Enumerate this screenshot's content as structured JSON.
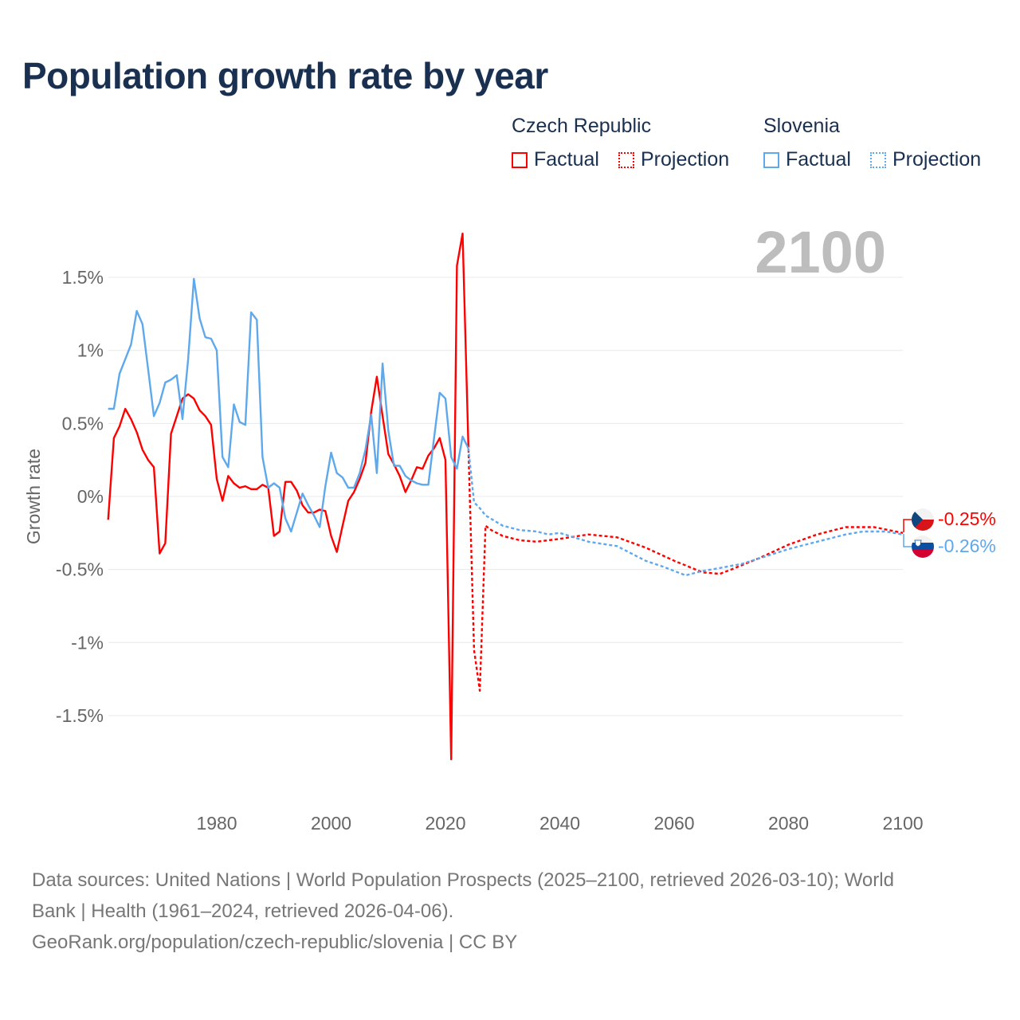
{
  "title": "Population growth rate by year",
  "legend": {
    "groups": [
      {
        "name": "Czech Republic",
        "color": "#ff0000",
        "factual": "Factual",
        "projection": "Projection"
      },
      {
        "name": "Slovenia",
        "color": "#5ea8ec",
        "factual": "Factual",
        "projection": "Projection"
      }
    ]
  },
  "year_label": "2100",
  "end_labels": {
    "czech": "-0.25%",
    "slovenia": "-0.26%"
  },
  "footer": {
    "line1": "Data sources: United Nations | World Population Prospects (2025–2100, retrieved 2026-03-10); World",
    "line2": "Bank | Health (1961–2024, retrieved 2026-04-06).",
    "line3": "GeoRank.org/population/czech-republic/slovenia | CC BY"
  },
  "chart_data": {
    "type": "line",
    "title": "Population growth rate by year",
    "xlabel": "",
    "ylabel": "Growth rate",
    "xlim": [
      1961,
      2100
    ],
    "ylim": [
      -2.0,
      1.9
    ],
    "xticks": [
      1980,
      2000,
      2020,
      2040,
      2060,
      2080,
      2100
    ],
    "xtick_labels": [
      "1980",
      "2000",
      "2020",
      "2040",
      "2060",
      "2080",
      "2100"
    ],
    "yticks": [
      1.5,
      1,
      0.5,
      0,
      -0.5,
      -1,
      -1.5
    ],
    "ytick_labels": [
      "1.5%",
      "1%",
      "0.5%",
      "0%",
      "-0.5%",
      "-1%",
      "-1.5%"
    ],
    "grid": true,
    "legend_position": "top-right",
    "series": [
      {
        "name": "Czech Republic - Factual",
        "color": "#ff0000",
        "style": "solid",
        "start_year": 1961,
        "values": [
          -0.16,
          0.4,
          0.48,
          0.6,
          0.53,
          0.44,
          0.32,
          0.25,
          0.2,
          -0.39,
          -0.32,
          0.43,
          0.55,
          0.67,
          0.7,
          0.67,
          0.59,
          0.55,
          0.49,
          0.12,
          -0.03,
          0.14,
          0.09,
          0.06,
          0.07,
          0.05,
          0.05,
          0.08,
          0.06,
          -0.27,
          -0.24,
          0.1,
          0.1,
          0.04,
          -0.06,
          -0.11,
          -0.11,
          -0.09,
          -0.1,
          -0.27,
          -0.38,
          -0.2,
          -0.03,
          0.03,
          0.12,
          0.23,
          0.58,
          0.82,
          0.55,
          0.29,
          0.22,
          0.14,
          0.03,
          0.11,
          0.2,
          0.19,
          0.28,
          0.33,
          0.4,
          0.25,
          -1.8,
          1.58,
          1.8,
          0.36
        ]
      },
      {
        "name": "Czech Republic - Projection",
        "color": "#ff0000",
        "style": "dotted",
        "points": [
          [
            2024,
            0.36
          ],
          [
            2025,
            -1.05
          ],
          [
            2026,
            -1.33
          ],
          [
            2027,
            -0.2
          ],
          [
            2028,
            -0.23
          ],
          [
            2030,
            -0.27
          ],
          [
            2033,
            -0.3
          ],
          [
            2036,
            -0.31
          ],
          [
            2040,
            -0.29
          ],
          [
            2045,
            -0.26
          ],
          [
            2050,
            -0.28
          ],
          [
            2055,
            -0.35
          ],
          [
            2060,
            -0.44
          ],
          [
            2065,
            -0.52
          ],
          [
            2068,
            -0.53
          ],
          [
            2070,
            -0.5
          ],
          [
            2075,
            -0.42
          ],
          [
            2080,
            -0.33
          ],
          [
            2085,
            -0.26
          ],
          [
            2090,
            -0.21
          ],
          [
            2095,
            -0.21
          ],
          [
            2100,
            -0.25
          ]
        ]
      },
      {
        "name": "Slovenia - Factual",
        "color": "#5ea8ec",
        "style": "solid",
        "start_year": 1961,
        "values": [
          0.6,
          0.6,
          0.84,
          0.94,
          1.04,
          1.27,
          1.18,
          0.87,
          0.55,
          0.64,
          0.78,
          0.8,
          0.83,
          0.53,
          0.94,
          1.49,
          1.22,
          1.09,
          1.08,
          1.0,
          0.27,
          0.2,
          0.63,
          0.51,
          0.49,
          1.26,
          1.21,
          0.27,
          0.06,
          0.09,
          0.06,
          -0.15,
          -0.24,
          -0.11,
          0.02,
          -0.06,
          -0.13,
          -0.21,
          0.07,
          0.3,
          0.16,
          0.13,
          0.06,
          0.06,
          0.16,
          0.32,
          0.56,
          0.16,
          0.91,
          0.45,
          0.21,
          0.21,
          0.14,
          0.11,
          0.09,
          0.08,
          0.08,
          0.4,
          0.71,
          0.67,
          0.27,
          0.19,
          0.41,
          0.33
        ]
      },
      {
        "name": "Slovenia - Projection",
        "color": "#5ea8ec",
        "style": "dotted",
        "points": [
          [
            2024,
            0.33
          ],
          [
            2025,
            -0.04
          ],
          [
            2026,
            -0.08
          ],
          [
            2027,
            -0.13
          ],
          [
            2030,
            -0.2
          ],
          [
            2033,
            -0.23
          ],
          [
            2036,
            -0.24
          ],
          [
            2038,
            -0.26
          ],
          [
            2040,
            -0.25
          ],
          [
            2045,
            -0.31
          ],
          [
            2050,
            -0.34
          ],
          [
            2055,
            -0.44
          ],
          [
            2058,
            -0.48
          ],
          [
            2062,
            -0.54
          ],
          [
            2065,
            -0.51
          ],
          [
            2068,
            -0.49
          ],
          [
            2072,
            -0.46
          ],
          [
            2076,
            -0.41
          ],
          [
            2080,
            -0.36
          ],
          [
            2085,
            -0.31
          ],
          [
            2090,
            -0.26
          ],
          [
            2093,
            -0.24
          ],
          [
            2097,
            -0.24
          ],
          [
            2100,
            -0.26
          ]
        ]
      }
    ]
  }
}
